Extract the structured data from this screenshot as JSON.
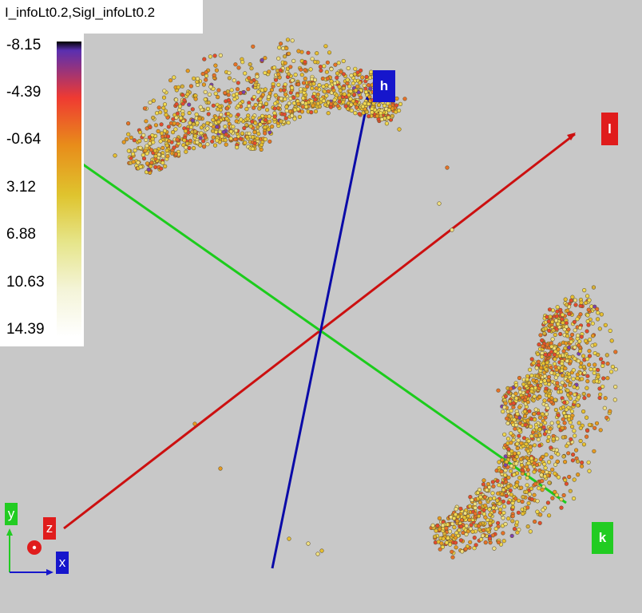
{
  "title": "I_infoLt0.2,SigI_infoLt0.2",
  "colorbar": {
    "ticks": [
      "-8.15",
      "-4.39",
      "-0.64",
      "3.12",
      "6.88",
      "10.63",
      "14.39"
    ],
    "gradient_colors": [
      "#000000",
      "#5a2fb0",
      "#ef3a32",
      "#e88c1a",
      "#dfc42e",
      "#e6e58a",
      "#f4f4d8",
      "#ffffff"
    ]
  },
  "axes": {
    "h": {
      "label": "h",
      "color": "#1616cc"
    },
    "l": {
      "label": "l",
      "color": "#e01c1c"
    },
    "k": {
      "label": "k",
      "color": "#22cc22"
    }
  },
  "orientation": {
    "y": {
      "label": "y",
      "color": "#22cc22"
    },
    "z": {
      "label": "z",
      "color": "#e01c1c"
    },
    "x": {
      "label": "x",
      "color": "#1616cc"
    }
  },
  "colors": {
    "background": "#c8c8c8",
    "axis_h": "#0a0aa8",
    "axis_l": "#cc1010",
    "axis_k": "#1ccc1c"
  }
}
